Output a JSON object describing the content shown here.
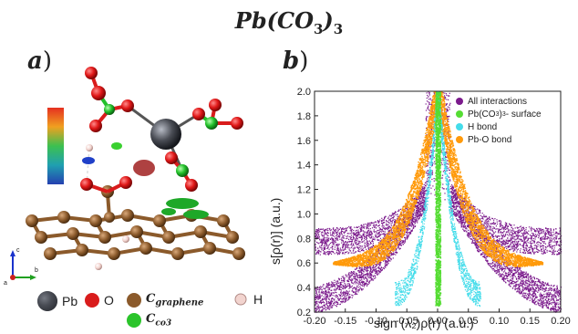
{
  "title": {
    "main": "Pb(CO",
    "sub1": "3",
    "mid": ")",
    "sub2": "3"
  },
  "panel_a": {
    "label": "a",
    "legend": [
      {
        "symbol": "Pb",
        "label": "Pb",
        "color": "#4a4d55"
      },
      {
        "symbol": "O",
        "label": "O",
        "color": "#d91c1c"
      },
      {
        "symbol": "C_graphene",
        "label": "C",
        "sub": "graphene",
        "color": "#8b5a2b"
      },
      {
        "symbol": "H",
        "label": "H",
        "color": "#f0d0cc"
      },
      {
        "symbol": "C_co3",
        "label": "C",
        "sub": "co3",
        "color": "#2bc42b"
      }
    ],
    "axes": {
      "a": "a",
      "b": "b",
      "c": "c"
    }
  },
  "panel_b": {
    "label": "b",
    "ylabel": "s[ρ(r)] (a.u.)",
    "xlabel": "sign (λ₂)ρ(r) (a.u.)"
  },
  "chart_data": {
    "type": "scatter",
    "title": "",
    "xlabel": "sign (λ₂)ρ(r) (a.u.)",
    "ylabel": "s[ρ(r)] (a.u.)",
    "xlim": [
      -0.2,
      0.2
    ],
    "ylim": [
      0.2,
      2.0
    ],
    "xticks": [
      "-0.20",
      "-0.15",
      "-0.10",
      "-0.05",
      "0.00",
      "0.05",
      "0.10",
      "0.15",
      "0.20"
    ],
    "yticks": [
      "0.2",
      "0.4",
      "0.6",
      "0.8",
      "1.0",
      "1.2",
      "1.4",
      "1.6",
      "1.8",
      "2.0"
    ],
    "legend_position": "top-right",
    "series": [
      {
        "name": "All interactions",
        "color": "#7b1a8c"
      },
      {
        "name": "Pb(CO3)3- surface",
        "name_text": "Pb(CO",
        "name_sub": "3",
        "name_tail": ")",
        "name_sub2": "3",
        "name_end": "- surface",
        "color": "#55dd33"
      },
      {
        "name": "H bond",
        "color": "#44dcea"
      },
      {
        "name": "Pb-O bond",
        "color": "#ff9a0a"
      }
    ]
  }
}
